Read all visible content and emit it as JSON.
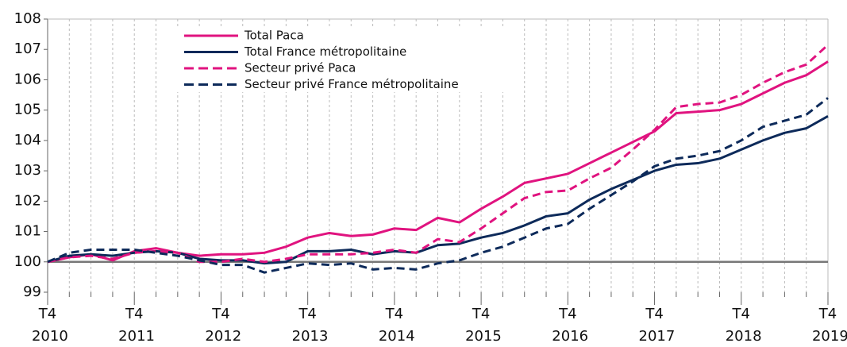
{
  "chart_data": {
    "type": "line",
    "categories": [
      "T4 2010",
      null,
      null,
      null,
      "T4 2011",
      null,
      null,
      null,
      "T4 2012",
      null,
      null,
      null,
      "T4 2013",
      null,
      null,
      null,
      "T4 2014",
      null,
      null,
      null,
      "T4 2015",
      null,
      null,
      null,
      "T4 2016",
      null,
      null,
      null,
      "T4 2017",
      null,
      null,
      null,
      "T4 2018",
      null,
      null,
      null,
      "T4 2019"
    ],
    "series": [
      {
        "name": "Total Paca",
        "color": "#e0137f",
        "dash": false,
        "values": [
          100,
          100.15,
          100.25,
          100.05,
          100.35,
          100.45,
          100.3,
          100.2,
          100.25,
          100.25,
          100.3,
          100.5,
          100.8,
          100.95,
          100.85,
          100.9,
          101.1,
          101.05,
          101.45,
          101.3,
          101.75,
          102.15,
          102.6,
          102.75,
          102.9,
          103.25,
          103.6,
          103.95,
          104.3,
          104.9,
          104.95,
          105.0,
          105.2,
          105.55,
          105.9,
          106.15,
          106.6
        ]
      },
      {
        "name": "Total France métropolitaine",
        "color": "#0d2a5a",
        "dash": false,
        "values": [
          100,
          100.2,
          100.25,
          100.2,
          100.3,
          100.35,
          100.3,
          100.1,
          100.05,
          100.05,
          99.95,
          100.0,
          100.35,
          100.35,
          100.4,
          100.25,
          100.35,
          100.3,
          100.55,
          100.6,
          100.8,
          100.95,
          101.2,
          101.5,
          101.6,
          102.05,
          102.4,
          102.7,
          103.0,
          103.2,
          103.25,
          103.4,
          103.7,
          104.0,
          104.25,
          104.4,
          104.8
        ]
      },
      {
        "name": "Secteur privé Paca",
        "color": "#e0137f",
        "dash": true,
        "values": [
          100,
          100.15,
          100.2,
          100.1,
          100.3,
          100.35,
          100.3,
          100.0,
          100.0,
          100.1,
          100.0,
          100.1,
          100.25,
          100.25,
          100.25,
          100.3,
          100.4,
          100.3,
          100.75,
          100.65,
          101.1,
          101.6,
          102.1,
          102.3,
          102.35,
          102.75,
          103.1,
          103.7,
          104.35,
          105.1,
          105.2,
          105.25,
          105.5,
          105.9,
          106.25,
          106.5,
          107.15
        ]
      },
      {
        "name": "Secteur privé France métropolitaine",
        "color": "#0d2a5a",
        "dash": true,
        "values": [
          100,
          100.3,
          100.4,
          100.4,
          100.4,
          100.3,
          100.2,
          100.05,
          99.9,
          99.9,
          99.65,
          99.8,
          99.95,
          99.9,
          99.95,
          99.75,
          99.8,
          99.75,
          99.95,
          100.05,
          100.3,
          100.5,
          100.8,
          101.1,
          101.25,
          101.75,
          102.2,
          102.65,
          103.15,
          103.4,
          103.5,
          103.65,
          104.0,
          104.45,
          104.65,
          104.85,
          105.4
        ]
      }
    ],
    "ylim": [
      99,
      108
    ],
    "yticks": [
      99,
      100,
      101,
      102,
      103,
      104,
      105,
      106,
      107,
      108
    ],
    "reference_line": 100,
    "grid": "x",
    "legend": "top-left"
  }
}
